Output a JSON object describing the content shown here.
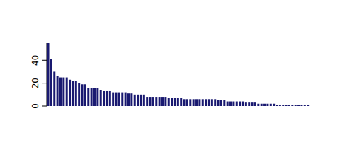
{
  "chart_data": {
    "type": "bar",
    "categories": [
      null,
      null,
      null,
      null,
      null,
      null,
      null,
      null,
      null,
      null,
      null,
      null,
      null,
      null,
      null,
      null,
      null,
      null,
      null,
      null,
      null,
      null,
      null,
      null,
      null,
      null,
      null,
      null,
      null,
      null,
      null,
      null,
      null,
      null,
      null,
      null,
      null,
      null,
      null,
      null,
      null,
      null,
      null,
      null,
      null,
      null,
      null,
      null,
      null,
      null,
      null,
      null,
      null,
      null,
      null,
      null,
      null,
      null,
      null,
      null,
      null,
      null,
      null,
      null,
      null,
      null,
      null,
      null,
      null,
      null,
      null,
      null,
      null,
      null,
      null,
      null,
      null,
      null,
      null,
      null,
      null,
      null,
      null,
      null,
      null
    ],
    "values": [
      55,
      41,
      30,
      26,
      25,
      25,
      25,
      23,
      22,
      22,
      20,
      19,
      19,
      16,
      16,
      16,
      16,
      14,
      13,
      13,
      13,
      12,
      12,
      12,
      12,
      12,
      11,
      11,
      10,
      10,
      10,
      10,
      8,
      8,
      8,
      8,
      8,
      8,
      8,
      7,
      7,
      7,
      7,
      7,
      6,
      6,
      6,
      6,
      6,
      6,
      6,
      6,
      6,
      6,
      6,
      5,
      5,
      5,
      4,
      4,
      4,
      4,
      4,
      4,
      3,
      3,
      3,
      3,
      2,
      2,
      2,
      2,
      2,
      2,
      1,
      1,
      1,
      1,
      1,
      1,
      1,
      1,
      1,
      1,
      1
    ],
    "color": "#191970",
    "ylim": [
      0,
      55
    ],
    "yticks": [
      0,
      20,
      40
    ],
    "tick_labels": "y"
  }
}
